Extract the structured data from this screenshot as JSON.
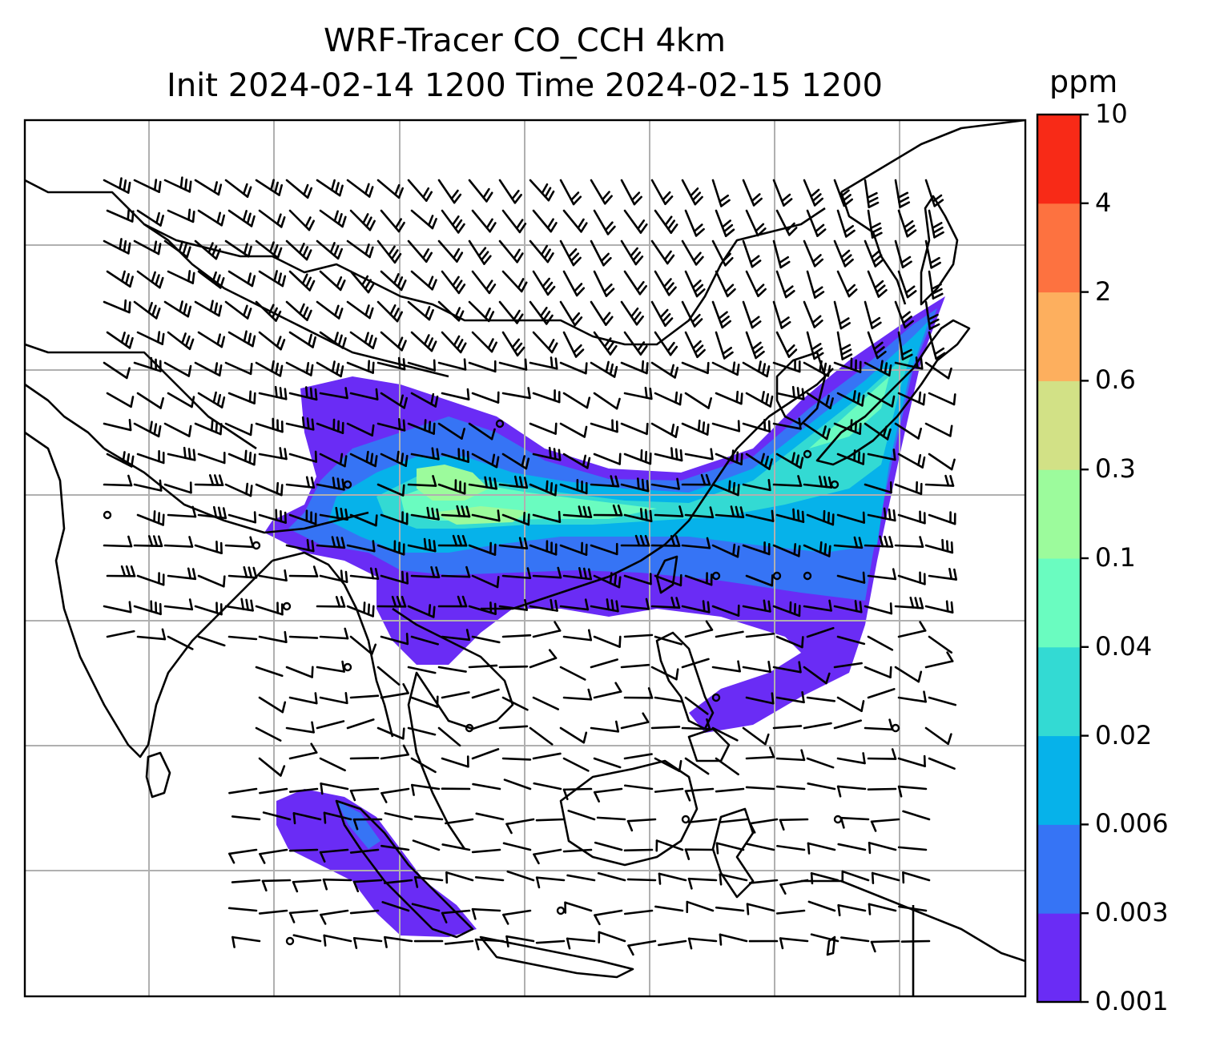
{
  "title_line1": "WRF-Tracer CO_CCH 4km",
  "title_line2": "Init 2024-02-14 1200 Time 2024-02-15 1200",
  "colorbar": {
    "unit": "ppm",
    "levels": [
      "0.001",
      "0.003",
      "0.006",
      "0.02",
      "0.04",
      "0.1",
      "0.3",
      "0.6",
      "2",
      "4",
      "10"
    ],
    "colors": [
      "#6a2cf5",
      "#3674f5",
      "#06b2ea",
      "#33dad3",
      "#6afcc0",
      "#9cfb9c",
      "#d2e186",
      "#fdaf5e",
      "#fd7240",
      "#f82a17"
    ]
  },
  "map": {
    "gridlines": true,
    "coastline_color": "#000000",
    "grid_color": "#b0b0b0"
  }
}
